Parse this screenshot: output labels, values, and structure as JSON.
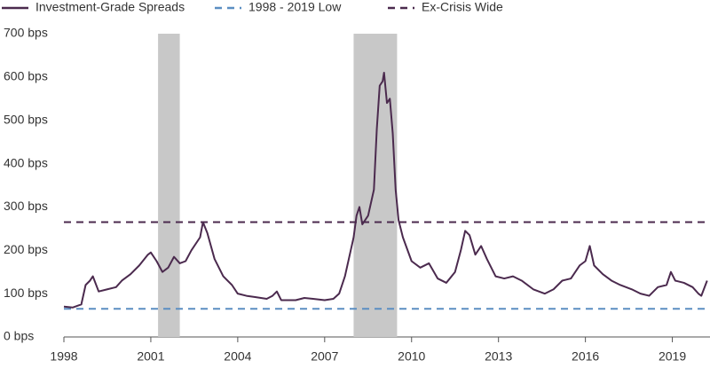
{
  "chart_data": {
    "type": "line",
    "x": [
      1998.0,
      1998.3,
      1998.6,
      1998.75,
      1998.9,
      1999.0,
      1999.2,
      1999.5,
      1999.8,
      2000.0,
      2000.3,
      2000.6,
      2000.9,
      2001.0,
      2001.2,
      2001.4,
      2001.6,
      2001.8,
      2002.0,
      2002.2,
      2002.4,
      2002.7,
      2002.8,
      2002.95,
      2003.2,
      2003.5,
      2003.8,
      2004.0,
      2004.3,
      2004.6,
      2005.0,
      2005.2,
      2005.35,
      2005.5,
      2005.8,
      2006.0,
      2006.3,
      2006.6,
      2007.0,
      2007.3,
      2007.5,
      2007.7,
      2007.9,
      2008.0,
      2008.1,
      2008.2,
      2008.3,
      2008.5,
      2008.7,
      2008.8,
      2008.9,
      2009.0,
      2009.05,
      2009.15,
      2009.25,
      2009.35,
      2009.45,
      2009.55,
      2009.7,
      2010.0,
      2010.3,
      2010.6,
      2010.9,
      2011.2,
      2011.5,
      2011.7,
      2011.85,
      2012.0,
      2012.2,
      2012.4,
      2012.6,
      2012.9,
      2013.2,
      2013.5,
      2013.8,
      2014.2,
      2014.6,
      2014.9,
      2015.2,
      2015.5,
      2015.8,
      2016.0,
      2016.15,
      2016.3,
      2016.6,
      2016.9,
      2017.2,
      2017.6,
      2017.9,
      2018.2,
      2018.5,
      2018.8,
      2018.95,
      2019.1,
      2019.4,
      2019.7,
      2019.9,
      2020.0,
      2020.2
    ],
    "series": [
      {
        "name": "Investment-Grade Spreads",
        "color": "#4b2a4e",
        "values": [
          70,
          68,
          75,
          120,
          130,
          140,
          105,
          110,
          115,
          130,
          145,
          165,
          190,
          195,
          175,
          150,
          160,
          185,
          170,
          175,
          200,
          230,
          265,
          240,
          180,
          140,
          120,
          100,
          95,
          92,
          88,
          95,
          105,
          85,
          85,
          85,
          90,
          88,
          85,
          88,
          100,
          140,
          200,
          230,
          280,
          300,
          260,
          280,
          340,
          480,
          580,
          590,
          610,
          540,
          550,
          470,
          340,
          270,
          230,
          175,
          160,
          170,
          135,
          125,
          150,
          200,
          245,
          235,
          190,
          210,
          180,
          140,
          135,
          140,
          130,
          110,
          100,
          110,
          130,
          135,
          165,
          175,
          210,
          165,
          145,
          130,
          120,
          110,
          100,
          95,
          115,
          120,
          150,
          130,
          125,
          115,
          100,
          95,
          130
        ]
      }
    ],
    "reference_lines": [
      {
        "name": "1998 - 2019 Low",
        "value": 65,
        "color": "#5b8ec2"
      },
      {
        "name": "Ex-Crisis Wide",
        "value": 265,
        "color": "#4b2a4e"
      }
    ],
    "shaded_regions": [
      [
        2001.25,
        2002.0
      ],
      [
        2008.0,
        2009.5
      ]
    ],
    "shade_color": "#c8c8c8",
    "xlim": [
      1998,
      2020.3
    ],
    "xticks": [
      1998,
      2001,
      2004,
      2007,
      2010,
      2013,
      2016,
      2019
    ],
    "ylim": [
      0,
      700
    ],
    "yticks": [
      {
        "value": 0,
        "label": "0 bps"
      },
      {
        "value": 100,
        "label": "100 bps"
      },
      {
        "value": 200,
        "label": "200 bps"
      },
      {
        "value": 300,
        "label": "300 bps"
      },
      {
        "value": 400,
        "label": "400 bps"
      },
      {
        "value": 500,
        "label": "500 bps"
      },
      {
        "value": 600,
        "label": "600 bps"
      },
      {
        "value": 700,
        "label": "700 bps"
      }
    ]
  }
}
